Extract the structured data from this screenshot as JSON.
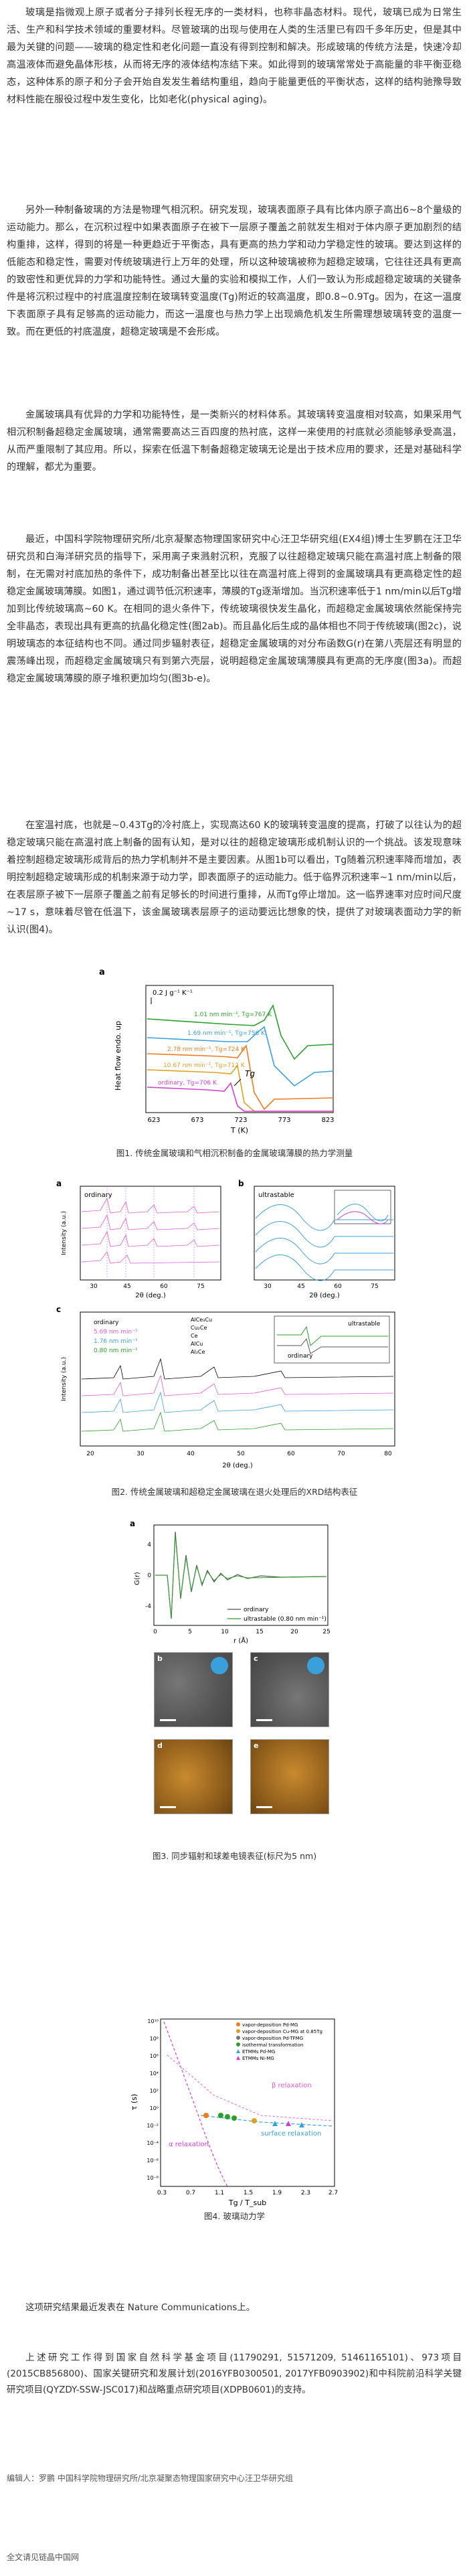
{
  "paragraphs": [
    "玻璃是指微观上原子或者分子排列长程无序的一类材料，也称非晶态材料。现代，玻璃已成为日常生活、生产和科学技术领域的重要材料。尽管玻璃的出现与使用在人类的生活里已有四千多年历史，但是其中最为关键的问题——玻璃的稳定性和老化问题一直没有得到控制和解决。形成玻璃的传统方法是，快速冷却高温液体而避免晶体形核，从而将无序的液体结构冻结下来。如此得到的玻璃常常处于高能量的非平衡亚稳态，这种体系的原子和分子会开始自发发生着结构重组，趋向于能量更低的平衡状态，这样的结构驰豫导致材料性能在服役过程中发生变化，比如老化(physical aging)。",
    "另外一种制备玻璃的方法是物理气相沉积。研究发现，玻璃表面原子具有比体内原子高出6~8个量级的运动能力。那么，在沉积过程中如果表面原子在被下一层原子覆盖之前就发生相对于体内原子更加剧烈的结构重排，这样，得到的将是一种更趋近于平衡态，具有更高的热力学和动力学稳定性的玻璃。要达到这样的低能态和稳定性，需要对传统玻璃进行上万年的处理，所以这种玻璃被称为超稳定玻璃，它往往还具有更高的致密性和更优异的力学和功能特性。通过大量的实验和模拟工作，人们一致认为形成超稳定玻璃的关键条件是将沉积过程中的衬底温度控制在玻璃转变温度(Tg)附近的较高温度，即0.8~0.9Tg。因为，在这一温度下表面原子具有足够高的运动能力，而这一温度也与热力学上出现熵危机发生所需理想玻璃转变的温度一致。而在更低的衬底温度，超稳定玻璃是不会形成。",
    "金属玻璃具有优异的力学和功能特性，是一类新兴的材料体系。其玻璃转变温度相对较高，如果采用气相沉积制备超稳定金属玻璃，通常需要高达三百四度的热衬底，这样一来使用的衬底就必须能够承受高温，从而严重限制了其应用。所以，探索在低温下制备超稳定玻璃无论是出于技术应用的要求，还是对基础科学的理解，都尤为重要。",
    "最近，中国科学院物理研究所/北京凝聚态物理国家研究中心汪卫华研究组(EX4组)博士生罗鹏在汪卫华研究员和白海洋研究员的指导下，采用离子束溅射沉积，克服了以往超稳定玻璃只能在高温衬底上制备的限制，在无需对衬底加热的条件下，成功制备出甚至比以往在高温衬底上得到的金属玻璃具有更高稳定性的超稳定金属玻璃薄膜。如图1，通过调节低沉积速率，薄膜的Tg逐渐增加。当沉积速率低于1 nm/min以后Tg增加到比传统玻璃高~60 K。在相同的退火条件下，传统玻璃很快发生晶化，而超稳定金属玻璃依然能保持完全非晶态，表现出具有更高的抗晶化稳定性(图2ab)。而且晶化后生成的晶体相也不同于传统玻璃(图2c)，说明玻璃态的本征结构也不同。通过同步辐射表征，超稳定金属玻璃的对分布函数G(r)在第八壳层还有明显的震荡峰出现，而超稳定金属玻璃只有到第六壳层，说明超稳定金属玻璃薄膜具有更高的无序度(图3a)。而超稳定金属玻璃薄膜的原子堆积更加均匀(图3b-e)。",
    "在室温衬底，也就是~0.43Tg的冷衬底上，实现高达60 K的玻璃转变温度的提高，打破了以往认为的超稳定玻璃只能在高温衬底上制备的固有认知，是对以往的超稳定玻璃形成机制认识的一个挑战。该发现意味着控制超稳定玻璃形成背后的热力学机制并不是主要因素。从图1b可以看出，Tg随着沉积速率降而增加，表明控制超稳定玻璃形成的机制来源于动力学，即表面原子的运动能力。低于临界沉积速率~1 nm/min以后，在表层原子被下一层原子覆盖之前有足够长的时间进行重排，从而Tg停止增加。这一临界速率对应时间尺度~17 s，意味着尽管在低温下，该金属玻璃表层原子的运动要远比想象的快，提供了对玻璃表面动力学的新认识(图4)。"
  ],
  "fig1": {
    "caption": "图1. 传统金属玻璃和气相沉积制备的金属玻璃薄膜的热力学测量",
    "panel": "a",
    "ylabel": "Heat flow endo. up",
    "xlabel": "T (K)",
    "scale": "0.2 J g⁻¹ K⁻¹",
    "xticks": [
      "623",
      "673",
      "723",
      "773",
      "823"
    ],
    "curves": [
      {
        "label": "1.01 nm min⁻¹, Tg=767 K",
        "color": "#2aa02a"
      },
      {
        "label": "1.69 nm min⁻¹, Tg=756 K",
        "color": "#3aa0dc"
      },
      {
        "label": "2.78 nm min⁻¹, Tg=724 K",
        "color": "#f07b1a"
      },
      {
        "label": "10.67 nm min⁻¹, Tg=712 K",
        "color": "#e0a020"
      },
      {
        "label": "ordinary, Tg=706 K",
        "color": "#d23fd2"
      }
    ],
    "tg_label": "Tg"
  },
  "fig2": {
    "caption": "图2. 传统金属玻璃和超稳定金属玻璃在退火处理后的XRD结构表征",
    "panel_a": {
      "tag": "a",
      "legend": "ordinary",
      "xlabel": "2θ (deg.)",
      "ylabel": "Intensity (a.u.)",
      "xticks": [
        "30",
        "45",
        "60",
        "75"
      ]
    },
    "panel_b": {
      "tag": "b",
      "legend": "ultrastable",
      "xlabel": "2θ (deg.)",
      "xticks": [
        "30",
        "45",
        "60",
        "75"
      ]
    },
    "panel_c": {
      "tag": "c",
      "xlabel": "2θ (deg.)",
      "ylabel": "Intensity (a.u.)",
      "xticks": [
        "20",
        "30",
        "40",
        "50",
        "60",
        "70",
        "80"
      ],
      "legend": [
        "ordinary",
        "5.69 nm min⁻¹",
        "1.76 nm min⁻¹",
        "0.80 nm min⁻¹"
      ],
      "phases": [
        "AlCe₃Cu",
        "Cu₂Ce",
        "Ce",
        "AlCu",
        "Al₂Ce"
      ],
      "inset": [
        "ultrastable",
        "ordinary"
      ]
    }
  },
  "fig3": {
    "caption": "图3. 同步辐射和球差电镜表征(标尺为5 nm)",
    "panel_a": {
      "tag": "a",
      "xlabel": "r (Å)",
      "ylabel": "G(r)",
      "xticks": [
        "0",
        "5",
        "10",
        "15",
        "20",
        "25"
      ],
      "yticks": [
        "-4",
        "0",
        "4"
      ],
      "legend": [
        "ordinary",
        "ultrastable (0.80 nm min⁻¹)"
      ]
    },
    "tags": [
      "b",
      "c",
      "d",
      "e"
    ]
  },
  "fig4": {
    "caption": "图4. 玻璃动力学",
    "ylabel": "τ (s)",
    "xlabel": "Tg / T_sub",
    "xticks": [
      "0.3",
      "0.7",
      "1.1",
      "1.5",
      "1.9",
      "2.3",
      "2.7"
    ],
    "yticks": [
      "10¹⁰",
      "10⁸",
      "10⁶",
      "10⁴",
      "10²",
      "10⁰",
      "10⁻²",
      "10⁻⁴",
      "10⁻⁶",
      "10⁻⁸"
    ],
    "legend": [
      "vapor-deposition Pd-MG",
      "vapor-deposition Cu-MG at 0.85Tg",
      "vapor-deposition Pd-TFMG",
      "isothermal transformation",
      "ETMMs Pd-MG",
      "ETMMs Ni-MG"
    ],
    "labels": {
      "beta": "β relaxation",
      "alpha": "α relaxation",
      "surface": "surface relaxation"
    }
  },
  "after_text": "这项研究结果最近发表在 Nature Communications上。",
  "funding": "上述研究工作得到国家自然科学基金项目(11790291, 51571209, 51461165101)、973项目(2015CB856800)、国家关键研究和发展计划(2016YFB0300501, 2017YFB0903902)和中科院前沿科学关键研究项目(QYZDY-SSW-JSC017)和战略重点研究项目(XDPB0601)的支持。",
  "editor": "编辑人：罗鹏  中国科学院物理研究所/北京凝聚态物理国家研究中心汪卫华研究组",
  "footer": "全文请见链晶中国网",
  "colors": {
    "text": "#333333",
    "pink": "#e05ad8",
    "blue": "#3aa0dc",
    "green": "#2aa02a"
  }
}
